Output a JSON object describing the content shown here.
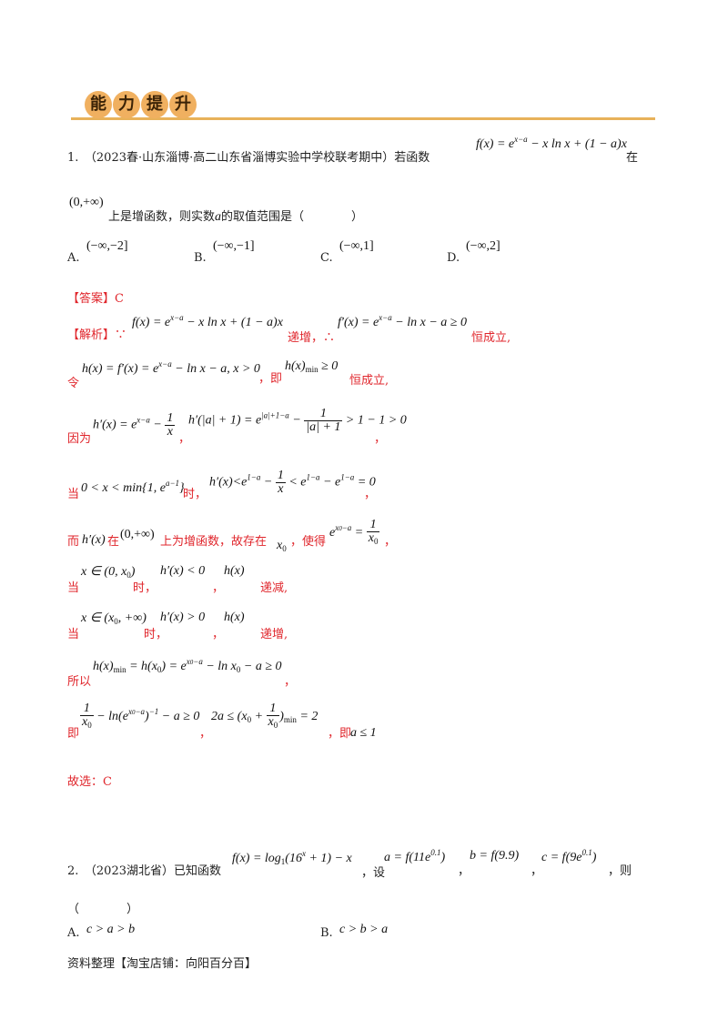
{
  "header": {
    "chars": [
      "能",
      "力",
      "提",
      "升"
    ],
    "accent_color": "#e8b25a"
  },
  "q1": {
    "line1_intro": "1.　（2023春·山东淄博·高二山东省淄博实验中学校联考期中）若函数",
    "line1_formula": "f(x) = e^(x−a) − x ln x + (1−a)x",
    "line1_end": "在",
    "domain": "(0,+∞)",
    "line2_text": "上是增函数，则实数",
    "var_a": "a",
    "line2_end": "的取值范围是（　　　　）",
    "options": [
      {
        "label": "A.",
        "value": "(−∞,−2]"
      },
      {
        "label": "B.",
        "value": "(−∞,−1]"
      },
      {
        "label": "C.",
        "value": "(−∞,1]"
      },
      {
        "label": "D.",
        "value": "(−∞,2]"
      }
    ]
  },
  "solution": {
    "answer_label": "【答案】C",
    "analysis_label": "【解析】∵",
    "s1_formula1": "f(x) = e^(x−a) − x ln x + (1−a)x",
    "s1_text1": "递增，∴",
    "s1_formula2": "f′(x) = e^(x−a) − ln x − a ≥ 0",
    "s1_text2": "恒成立,",
    "s2_prefix": "令",
    "s2_formula1": "h(x) = f′(x) = e^(x−a) − ln x − a, x > 0",
    "s2_text1": "，即",
    "s2_formula2": "h(x)min ≥ 0",
    "s2_text2": "恒成立,",
    "s3_prefix": "因为",
    "s3_formula1": "h′(x) = e^(x−a) − 1/x",
    "s3_sep": "，",
    "s3_formula2": "h′(|a|+1) = e^(|a|+1−a) − 1/(|a|+1) > 1−1 > 0",
    "s3_end": "，",
    "s4_prefix": "当",
    "s4_formula1": "0 < x < min{1, e^(a−1)}",
    "s4_text": "时，",
    "s4_formula2": "h′(x) < e^(1−a) − 1/x < e^(1−a) − e^(1−a) = 0",
    "s4_end": "，",
    "s5_prefix": "而",
    "s5_f1": "h′(x)",
    "s5_t1": "在",
    "s5_f2": "(0,+∞)",
    "s5_t2": "上为增函数，故存在",
    "s5_f3": "x0",
    "s5_t3": "，使得",
    "s5_f4": "e^(x0−a) = 1/x0",
    "s5_end": "，",
    "s6_prefix": "当",
    "s6_f1": "x ∈ (0, x0)",
    "s6_t1": "时，",
    "s6_f2": "h′(x) < 0",
    "s6_sep": "，",
    "s6_f3": "h(x)",
    "s6_t2": "递减,",
    "s7_prefix": "当",
    "s7_f1": "x ∈ (x0, +∞)",
    "s7_t1": "时，",
    "s7_f2": "h′(x) > 0",
    "s7_sep": "，",
    "s7_f3": "h(x)",
    "s7_t2": "递增,",
    "s8_prefix": "所以",
    "s8_formula": "h(x)min = h(x0) = e^(x0−a) − ln x0 − a ≥ 0",
    "s8_end": "，",
    "s9_prefix": "即",
    "s9_formula1": "1/x0 − ln(e^(x0−a))^(−1) − a ≥ 0",
    "s9_sep": "，",
    "s9_formula2": "2a ≤ (x0 + 1/x0)min = 2",
    "s9_text": "，即",
    "s9_formula3": "a ≤ 1",
    "conclusion": "故选：C"
  },
  "q2": {
    "line1_intro": "2.　（2023湖北省）已知函数",
    "line1_formula1": "f(x) = log_{1/3}(16^x + 1) − x",
    "line1_text": "，设",
    "line1_formula2": "a = f(11e^(0.1))",
    "line1_sep1": "，",
    "line1_formula3": "b = f(9.9)",
    "line1_sep2": "，",
    "line1_formula4": "c = f(9e^(0.1))",
    "line1_end": "，则",
    "paren": "（　　　　）",
    "options": [
      {
        "label": "A.",
        "value": "c > a > b"
      },
      {
        "label": "B.",
        "value": "c > b > a"
      }
    ]
  },
  "footer": "资料整理【淘宝店铺：向阳百分百】"
}
